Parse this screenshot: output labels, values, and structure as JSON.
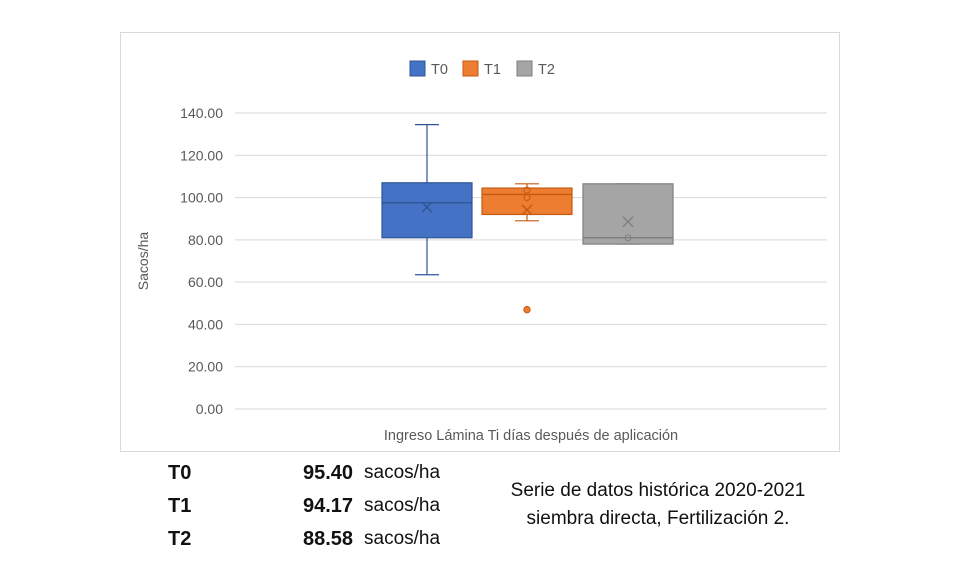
{
  "chart_data": {
    "type": "boxplot",
    "ylabel": "Sacos/ha",
    "xlabel": "Ingreso Lámina Ti días después de aplicación",
    "ylim": [
      0,
      140
    ],
    "y_ticks": [
      0,
      20,
      40,
      60,
      80,
      100,
      120,
      140
    ],
    "y_tick_labels": [
      "0.00",
      "20.00",
      "40.00",
      "60.00",
      "80.00",
      "100.00",
      "120.00",
      "140.00"
    ],
    "grid": true,
    "legend_position": "top",
    "series": [
      {
        "name": "T0",
        "color": "#4472c4",
        "stroke": "#2f5597",
        "min": 63.5,
        "q1": 81,
        "median": 97.5,
        "q3": 107,
        "max": 134.5,
        "mean": 95.4,
        "inner_points": [],
        "outliers": []
      },
      {
        "name": "T1",
        "color": "#ed7d31",
        "stroke": "#c55a11",
        "min": 89,
        "q1": 92,
        "median": 101.5,
        "q3": 104.5,
        "max": 106.5,
        "mean": 94.17,
        "inner_points": [
          100,
          103.5
        ],
        "outliers": [
          47
        ]
      },
      {
        "name": "T2",
        "color": "#a5a5a5",
        "stroke": "#7f7f7f",
        "min": 78,
        "q1": 78,
        "median": 81,
        "q3": 106.5,
        "max": 106.5,
        "mean": 88.58,
        "inner_points": [
          81
        ],
        "outliers": []
      }
    ]
  },
  "summary": [
    {
      "label": "T0",
      "value": "95.40",
      "unit": "sacos/ha"
    },
    {
      "label": "T1",
      "value": "94.17",
      "unit": "sacos/ha"
    },
    {
      "label": "T2",
      "value": "88.58",
      "unit": "sacos/ha"
    }
  ],
  "note": {
    "line1": "Serie de datos histórica 2020-2021",
    "line2": "siembra directa, Fertilización 2."
  }
}
